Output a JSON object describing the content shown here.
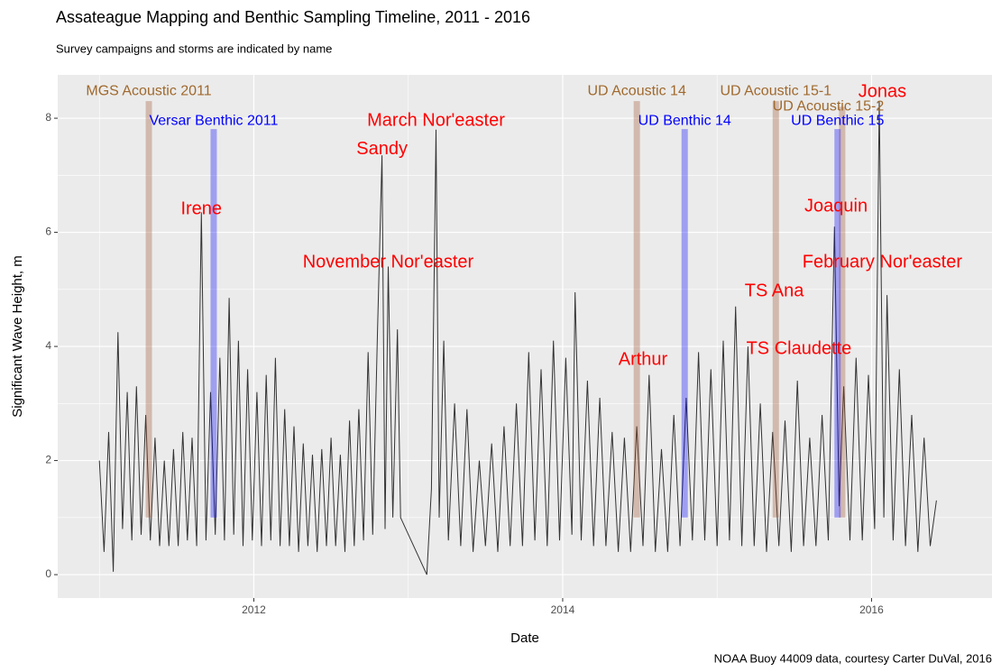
{
  "chart_data": {
    "type": "line",
    "title": "Assateague Mapping and Benthic Sampling Timeline, 2011 - 2016",
    "subtitle": "Survey campaigns and storms are indicated by name",
    "x_label": "Date",
    "y_label": "Significant Wave Height, m",
    "caption": "NOAA Buoy 44009 data, courtesy Carter DuVal, 2016",
    "color": "#333333",
    "xlim": [
      2010.73,
      2016.78
    ],
    "ylim": [
      -0.41,
      8.76
    ],
    "xticks": [
      2012,
      2014,
      2016
    ],
    "yticks": [
      0,
      2,
      4,
      6,
      8
    ],
    "xminorticks": [
      2011,
      2013,
      2015
    ],
    "yminorticks": [
      1,
      3,
      5,
      7
    ],
    "grid": true,
    "x": [
      2011.0,
      2011.03,
      2011.06,
      2011.09,
      2011.12,
      2011.15,
      2011.18,
      2011.21,
      2011.24,
      2011.27,
      2011.3,
      2011.33,
      2011.36,
      2011.39,
      2011.42,
      2011.45,
      2011.48,
      2011.51,
      2011.54,
      2011.57,
      2011.6,
      2011.63,
      2011.66,
      2011.69,
      2011.72,
      2011.75,
      2011.78,
      2011.81,
      2011.84,
      2011.87,
      2011.9,
      2011.93,
      2011.96,
      2011.99,
      2012.02,
      2012.05,
      2012.08,
      2012.11,
      2012.14,
      2012.17,
      2012.2,
      2012.23,
      2012.26,
      2012.29,
      2012.32,
      2012.35,
      2012.38,
      2012.41,
      2012.44,
      2012.47,
      2012.5,
      2012.53,
      2012.56,
      2012.59,
      2012.62,
      2012.65,
      2012.68,
      2012.71,
      2012.74,
      2012.77,
      2012.8,
      2012.83,
      2012.85,
      2012.87,
      2012.9,
      2012.93,
      2012.95,
      2013.12,
      2013.15,
      2013.18,
      2013.2,
      2013.23,
      2013.26,
      2013.3,
      2013.34,
      2013.38,
      2013.42,
      2013.46,
      2013.5,
      2013.54,
      2013.58,
      2013.62,
      2013.66,
      2013.7,
      2013.74,
      2013.78,
      2013.82,
      2013.86,
      2013.9,
      2013.94,
      2013.98,
      2014.02,
      2014.06,
      2014.08,
      2014.12,
      2014.16,
      2014.2,
      2014.24,
      2014.28,
      2014.32,
      2014.36,
      2014.4,
      2014.44,
      2014.48,
      2014.52,
      2014.56,
      2014.6,
      2014.64,
      2014.68,
      2014.72,
      2014.76,
      2014.8,
      2014.84,
      2014.88,
      2014.92,
      2014.96,
      2015.0,
      2015.04,
      2015.08,
      2015.12,
      2015.16,
      2015.2,
      2015.24,
      2015.28,
      2015.32,
      2015.36,
      2015.4,
      2015.44,
      2015.48,
      2015.52,
      2015.56,
      2015.6,
      2015.64,
      2015.68,
      2015.72,
      2015.76,
      2015.79,
      2015.82,
      2015.86,
      2015.9,
      2015.94,
      2015.98,
      2016.02,
      2016.05,
      2016.08,
      2016.1,
      2016.14,
      2016.18,
      2016.22,
      2016.26,
      2016.3,
      2016.34,
      2016.38,
      2016.42
    ],
    "values": [
      2.0,
      0.4,
      2.5,
      0.05,
      4.25,
      0.8,
      3.2,
      0.6,
      3.3,
      0.7,
      2.8,
      0.6,
      2.4,
      0.5,
      2.0,
      0.5,
      2.2,
      0.5,
      2.5,
      0.6,
      2.4,
      0.5,
      6.35,
      0.6,
      3.2,
      0.7,
      3.8,
      0.6,
      4.85,
      0.7,
      4.1,
      0.5,
      3.6,
      0.6,
      3.2,
      0.5,
      3.5,
      0.6,
      3.8,
      0.5,
      2.9,
      0.5,
      2.6,
      0.4,
      2.3,
      0.5,
      2.1,
      0.4,
      2.2,
      0.5,
      2.4,
      0.5,
      2.1,
      0.4,
      2.7,
      0.5,
      2.9,
      0.6,
      3.9,
      0.7,
      4.2,
      7.35,
      0.8,
      5.4,
      1.0,
      4.3,
      1.0,
      0.0,
      1.5,
      7.8,
      1.0,
      4.1,
      0.6,
      3.0,
      0.5,
      2.9,
      0.4,
      2.0,
      0.5,
      2.3,
      0.4,
      2.6,
      0.5,
      3.0,
      0.5,
      3.9,
      0.6,
      3.6,
      0.5,
      4.1,
      0.6,
      3.8,
      0.7,
      4.95,
      0.6,
      3.4,
      0.5,
      3.1,
      0.5,
      2.5,
      0.4,
      2.4,
      0.4,
      2.6,
      0.5,
      3.5,
      0.4,
      2.2,
      0.4,
      2.8,
      0.5,
      3.1,
      0.6,
      3.9,
      0.6,
      3.6,
      0.5,
      4.1,
      0.6,
      4.7,
      0.5,
      4.0,
      0.5,
      3.0,
      0.4,
      2.5,
      0.5,
      2.7,
      0.4,
      3.4,
      0.5,
      2.4,
      0.5,
      2.8,
      0.6,
      6.1,
      1.2,
      3.3,
      0.6,
      3.8,
      0.6,
      3.5,
      0.8,
      8.3,
      1.0,
      4.9,
      0.6,
      3.6,
      0.5,
      2.8,
      0.4,
      2.4,
      0.5,
      1.3
    ],
    "bands": [
      {
        "label": "MGS Acoustic 2011",
        "x": 2011.32,
        "ymin": 1.0,
        "ymax": 8.3,
        "color": "#a0522d",
        "label_color": "#a0692d",
        "label_x": 2011.32,
        "label_y": 8.47
      },
      {
        "label": "Versar Benthic 2011",
        "x": 2011.74,
        "ymin": 1.0,
        "ymax": 7.81,
        "color": "#0000ff",
        "label_color": "#0000ff",
        "label_x": 2011.74,
        "label_y": 7.95
      },
      {
        "label": "UD Acoustic 14",
        "x": 2014.48,
        "ymin": 1.0,
        "ymax": 8.3,
        "color": "#a0522d",
        "label_color": "#a0692d",
        "label_x": 2014.48,
        "label_y": 8.47
      },
      {
        "label": "UD Benthic 14",
        "x": 2014.79,
        "ymin": 1.0,
        "ymax": 7.81,
        "color": "#0000ff",
        "label_color": "#0000ff",
        "label_x": 2014.79,
        "label_y": 7.95
      },
      {
        "label": "UD Acoustic 15-1",
        "x": 2015.38,
        "ymin": 1.0,
        "ymax": 8.3,
        "color": "#a0522d",
        "label_color": "#a0692d",
        "label_x": 2015.38,
        "label_y": 8.47
      },
      {
        "label": "UD Acoustic 15-2",
        "x": 2015.81,
        "ymin": 1.0,
        "ymax": 8.2,
        "color": "#a0522d",
        "label_color": "#a0692d",
        "label_x": 2015.72,
        "label_y": 8.2
      },
      {
        "label": "UD Benthic 15",
        "x": 2015.78,
        "ymin": 1.0,
        "ymax": 7.81,
        "color": "#0000ff",
        "label_color": "#0000ff",
        "label_x": 2015.78,
        "label_y": 7.95
      }
    ],
    "annotation_color": "#ff0000",
    "annotations": [
      {
        "text": "Irene",
        "x": 2011.66,
        "y": 6.4
      },
      {
        "text": "March Nor'easter",
        "x": 2013.18,
        "y": 7.95
      },
      {
        "text": "Sandy",
        "x": 2012.83,
        "y": 7.45
      },
      {
        "text": "November Nor'easter",
        "x": 2012.87,
        "y": 5.47
      },
      {
        "text": "Arthur",
        "x": 2014.52,
        "y": 3.76
      },
      {
        "text": "TS Ana",
        "x": 2015.37,
        "y": 4.96
      },
      {
        "text": "TS Claudette",
        "x": 2015.53,
        "y": 3.95
      },
      {
        "text": "Joaquin",
        "x": 2015.77,
        "y": 6.45
      },
      {
        "text": "February Nor'easter",
        "x": 2016.07,
        "y": 5.47
      },
      {
        "text": "Jonas",
        "x": 2016.07,
        "y": 8.46
      }
    ]
  }
}
